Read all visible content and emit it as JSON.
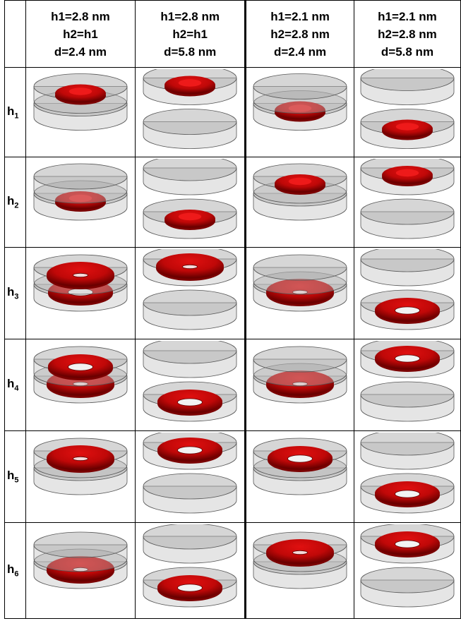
{
  "table": {
    "columns": [
      {
        "lines": [
          "h1=2.8 nm",
          "h2=h1",
          "d=2.4 nm"
        ]
      },
      {
        "lines": [
          "h1=2.8 nm",
          "h2=h1",
          "d=5.8 nm"
        ]
      },
      {
        "lines": [
          "h1=2.1 nm",
          "h2=2.8 nm",
          "d=2.4 nm"
        ]
      },
      {
        "lines": [
          "h1=2.1 nm",
          "h2=2.8 nm",
          "d=5.8 nm"
        ]
      }
    ],
    "rows": [
      {
        "label": {
          "base": "h",
          "sub": "1"
        }
      },
      {
        "label": {
          "base": "h",
          "sub": "2"
        }
      },
      {
        "label": {
          "base": "h",
          "sub": "3"
        }
      },
      {
        "label": {
          "base": "h",
          "sub": "4"
        }
      },
      {
        "label": {
          "base": "h",
          "sub": "5"
        }
      },
      {
        "label": {
          "base": "h",
          "sub": "6"
        }
      }
    ]
  }
}
